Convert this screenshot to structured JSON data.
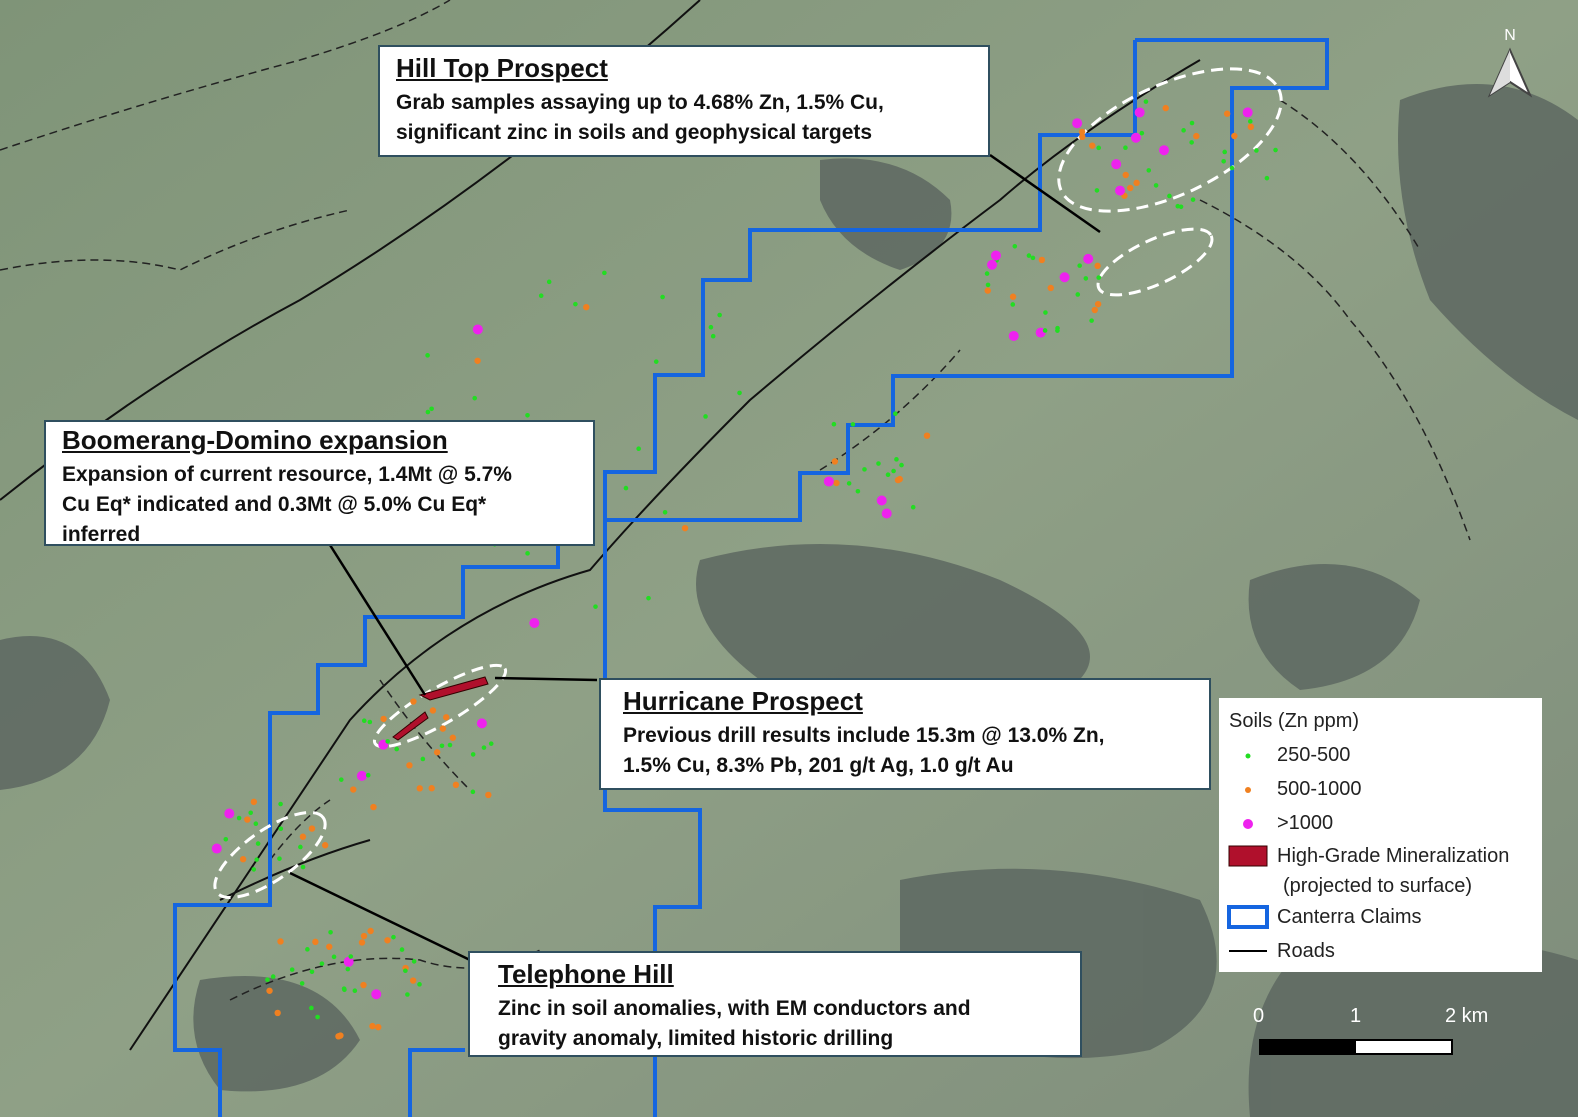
{
  "callouts": [
    {
      "title": "Hill Top Prospect",
      "lines": [
        "Grab samples assaying up to 4.68% Zn, 1.5% Cu,",
        "significant zinc in soils and geophysical targets"
      ]
    },
    {
      "title": "Boomerang-Domino expansion",
      "lines": [
        "Expansion of current resource, 1.4Mt @ 5.7%",
        "Cu Eq* indicated and 0.3Mt @ 5.0% Cu Eq*",
        "inferred"
      ]
    },
    {
      "title": "Hurricane Prospect",
      "lines": [
        "Previous drill results include 15.3m @ 13.0% Zn,",
        "1.5% Cu, 8.3% Pb, 201 g/t Ag, 1.0 g/t Au"
      ]
    },
    {
      "title": "Telephone Hill",
      "lines": [
        "Zinc in soil anomalies, with EM conductors and",
        "gravity anomaly, limited historic drilling"
      ]
    }
  ],
  "legend": {
    "title": "Soils (Zn ppm)",
    "items": [
      "250-500",
      "500-1000",
      ">1000",
      "High-Grade Mineralization",
      "(projected to surface)",
      "Canterra Claims",
      "Roads"
    ]
  },
  "scale": [
    "0",
    "1",
    "2 km"
  ],
  "north": "N"
}
